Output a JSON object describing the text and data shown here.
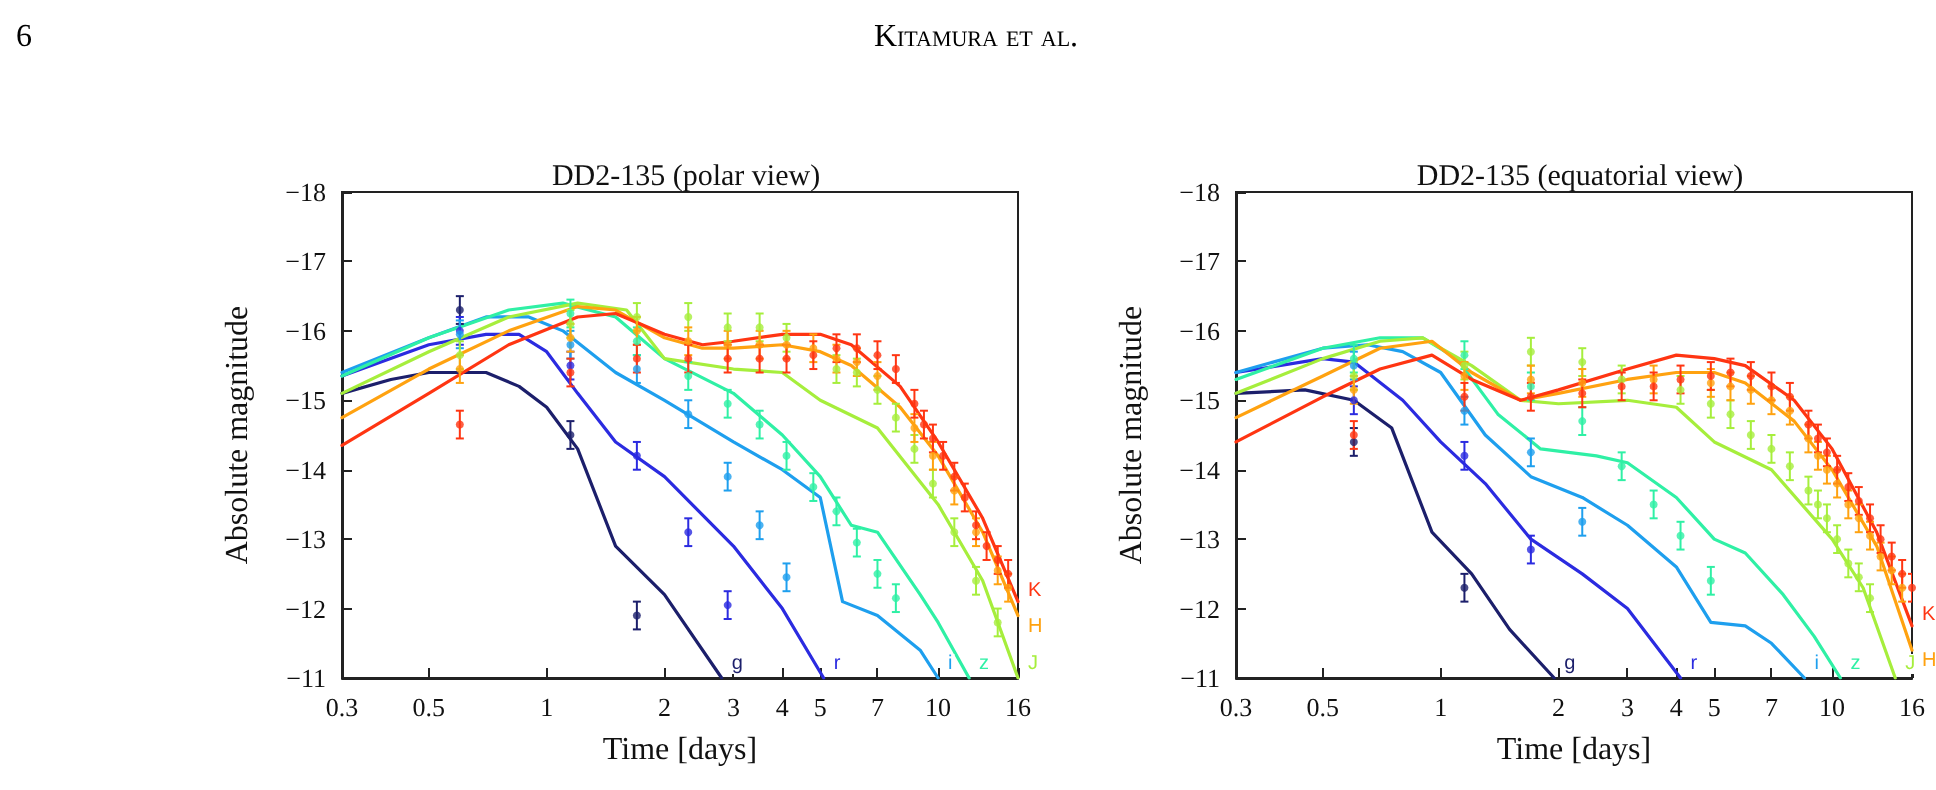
{
  "chart_data": [
    {
      "type": "line",
      "title": "DD2-135 (polar view)",
      "xlabel": "Time [days]",
      "ylabel": "Absolute magnitude",
      "annotations": [
        "6",
        "Kitamura et al."
      ],
      "log": "x",
      "grid": false,
      "legend": false,
      "marker": "none",
      "line_style": "solid",
      "xlim": [
        0.3,
        16
      ],
      "xticks": [
        0.3,
        0.5,
        1,
        2,
        3,
        4,
        5,
        7,
        10,
        16
      ],
      "ylim": [
        -11,
        -18
      ],
      "yticks": [
        {
          "value": -18,
          "label": "−18"
        },
        {
          "value": -17,
          "label": "−17"
        },
        {
          "value": -16,
          "label": "−16"
        },
        {
          "value": -15,
          "label": "−15"
        },
        {
          "value": -14,
          "label": "−14"
        },
        {
          "value": -13,
          "label": "−13"
        },
        {
          "value": -12,
          "label": "−12"
        },
        {
          "value": -11,
          "label": "−11"
        }
      ],
      "series": [
        {
          "name": "g",
          "color": "#1c1f6b",
          "x": [
            0.3,
            0.4,
            0.5,
            0.7,
            0.85,
            1.0,
            1.2,
            1.5,
            2.0,
            2.8
          ],
          "values": [
            -15.1,
            -15.3,
            -15.4,
            -15.4,
            -15.2,
            -14.9,
            -14.3,
            -12.9,
            -12.2,
            -11
          ]
        },
        {
          "name": "r",
          "color": "#2b2be0",
          "x": [
            0.3,
            0.5,
            0.7,
            0.85,
            1.0,
            1.2,
            1.5,
            2,
            3,
            4,
            5.1
          ],
          "values": [
            -15.35,
            -15.8,
            -15.95,
            -15.95,
            -15.7,
            -15.1,
            -14.4,
            -13.9,
            -12.9,
            -12.0,
            -11
          ]
        },
        {
          "name": "i",
          "color": "#1e9fee",
          "x": [
            0.3,
            0.5,
            0.7,
            0.9,
            1.1,
            1.5,
            2,
            3,
            4,
            5,
            5.7,
            7,
            9,
            10
          ],
          "values": [
            -15.4,
            -15.9,
            -16.2,
            -16.2,
            -16.0,
            -15.4,
            -15.0,
            -14.4,
            -14.0,
            -13.6,
            -12.1,
            -11.9,
            -11.4,
            -11
          ]
        },
        {
          "name": "z",
          "color": "#2ff0a5",
          "x": [
            0.3,
            0.5,
            0.8,
            1.1,
            1.5,
            2,
            3,
            4,
            5,
            6,
            7,
            9,
            10,
            12
          ],
          "values": [
            -15.35,
            -15.9,
            -16.3,
            -16.4,
            -16.2,
            -15.6,
            -15.1,
            -14.5,
            -13.9,
            -13.2,
            -13.1,
            -12.2,
            -11.8,
            -11
          ]
        },
        {
          "name": "J",
          "color": "#a6ee3c",
          "x": [
            0.3,
            0.5,
            0.8,
            1.2,
            1.6,
            2,
            3,
            4,
            5,
            7,
            10,
            13,
            16
          ],
          "values": [
            -15.1,
            -15.7,
            -16.2,
            -16.4,
            -16.3,
            -15.6,
            -15.45,
            -15.4,
            -15.0,
            -14.6,
            -13.5,
            -12.4,
            -11
          ]
        },
        {
          "name": "H",
          "color": "#ffa210",
          "x": [
            0.3,
            0.5,
            0.8,
            1.2,
            1.5,
            2,
            2.5,
            3,
            4,
            5,
            6,
            8,
            10,
            13,
            16
          ],
          "values": [
            -14.75,
            -15.45,
            -16.0,
            -16.35,
            -16.3,
            -15.9,
            -15.75,
            -15.75,
            -15.8,
            -15.7,
            -15.5,
            -14.9,
            -14.2,
            -13.1,
            -11.9
          ]
        },
        {
          "name": "K",
          "color": "#ff3512",
          "x": [
            0.3,
            0.5,
            0.8,
            1.2,
            1.5,
            2,
            2.5,
            3,
            4,
            5,
            6,
            8,
            10,
            13,
            16
          ],
          "values": [
            -14.35,
            -15.1,
            -15.8,
            -16.2,
            -16.25,
            -15.95,
            -15.8,
            -15.85,
            -15.95,
            -15.95,
            -15.8,
            -15.2,
            -14.4,
            -13.3,
            -12.1
          ]
        },
        {
          "type": "scatter",
          "marker": "circle",
          "color": "#1c1f6b",
          "x": [
            0.6,
            1.15,
            1.7
          ],
          "values": [
            -16.3,
            -14.5,
            -11.9
          ],
          "errors": [
            0.2,
            0.2,
            0.2
          ]
        },
        {
          "type": "scatter",
          "marker": "circle",
          "color": "#2b2be0",
          "x": [
            0.6,
            1.15,
            1.7,
            2.3,
            2.9
          ],
          "values": [
            -16.0,
            -15.5,
            -14.2,
            -13.1,
            -12.05
          ],
          "errors": [
            0.2,
            0.2,
            0.2,
            0.2,
            0.2
          ]
        },
        {
          "type": "scatter",
          "marker": "circle",
          "color": "#1e9fee",
          "x": [
            0.6,
            1.15,
            1.7,
            2.3,
            2.9,
            3.5,
            4.1
          ],
          "values": [
            -15.95,
            -15.8,
            -15.45,
            -14.8,
            -13.9,
            -13.2,
            -12.45
          ],
          "errors": [
            0.2,
            0.2,
            0.2,
            0.2,
            0.2,
            0.2,
            0.2
          ]
        },
        {
          "type": "scatter",
          "marker": "circle",
          "color": "#2ff0a5",
          "x": [
            1.15,
            1.7,
            2.3,
            2.9,
            3.5,
            4.1,
            4.8,
            5.5,
            6.2,
            7,
            7.8
          ],
          "values": [
            -16.25,
            -15.85,
            -15.35,
            -14.95,
            -14.65,
            -14.2,
            -13.75,
            -13.4,
            -12.95,
            -12.5,
            -12.15
          ],
          "errors": [
            0.2,
            0.2,
            0.2,
            0.2,
            0.2,
            0.2,
            0.2,
            0.2,
            0.2,
            0.2,
            0.2
          ]
        },
        {
          "type": "scatter",
          "marker": "circle",
          "color": "#a6ee3c",
          "x": [
            0.6,
            1.15,
            1.7,
            2.3,
            2.9,
            3.5,
            4.1,
            5.5,
            6.2,
            7,
            7.8,
            8.7,
            9.7,
            11,
            12.5,
            14.2
          ],
          "values": [
            -15.65,
            -16.1,
            -16.2,
            -16.2,
            -16.05,
            -16.05,
            -15.9,
            -15.45,
            -15.4,
            -15.15,
            -14.75,
            -14.3,
            -13.8,
            -13.1,
            -12.4,
            -11.8
          ],
          "errors": [
            0.2,
            0.2,
            0.2,
            0.2,
            0.2,
            0.2,
            0.2,
            0.2,
            0.2,
            0.2,
            0.2,
            0.2,
            0.2,
            0.2,
            0.2,
            0.2
          ]
        },
        {
          "type": "scatter",
          "marker": "circle",
          "color": "#ffa210",
          "x": [
            0.6,
            1.15,
            1.7,
            2.3,
            2.9,
            3.5,
            4.1,
            4.8,
            5.5,
            6.2,
            7,
            8.7,
            9.7,
            11,
            12.5,
            14.2,
            15.1
          ],
          "values": [
            -15.45,
            -15.9,
            -16.0,
            -15.85,
            -15.8,
            -15.8,
            -15.8,
            -15.75,
            -15.6,
            -15.55,
            -15.35,
            -14.6,
            -14.2,
            -13.7,
            -13.1,
            -12.55,
            -12.3
          ],
          "errors": [
            0.2,
            0.2,
            0.2,
            0.2,
            0.2,
            0.2,
            0.2,
            0.2,
            0.2,
            0.2,
            0.2,
            0.2,
            0.2,
            0.2,
            0.2,
            0.2,
            0.2
          ]
        },
        {
          "type": "scatter",
          "marker": "circle",
          "color": "#ff3512",
          "x": [
            0.6,
            1.15,
            1.7,
            2.3,
            2.9,
            3.5,
            4.1,
            4.8,
            5.5,
            6.2,
            7,
            7.8,
            8.7,
            9.2,
            9.7,
            10.3,
            11,
            11.7,
            12.5,
            13.3,
            14.2,
            15.1
          ],
          "values": [
            -14.65,
            -15.4,
            -15.6,
            -15.6,
            -15.6,
            -15.6,
            -15.6,
            -15.65,
            -15.75,
            -15.75,
            -15.65,
            -15.45,
            -14.95,
            -14.65,
            -14.45,
            -14.2,
            -13.9,
            -13.6,
            -13.2,
            -12.9,
            -12.7,
            -12.5
          ],
          "errors": [
            0.2,
            0.2,
            0.2,
            0.2,
            0.2,
            0.2,
            0.2,
            0.2,
            0.2,
            0.2,
            0.2,
            0.2,
            0.2,
            0.2,
            0.2,
            0.2,
            0.2,
            0.2,
            0.2,
            0.2,
            0.2,
            0.2
          ]
        }
      ]
    },
    {
      "type": "line",
      "title": "DD2-135 (equatorial view)",
      "xlabel": "Time [days]",
      "ylabel": "Absolute magnitude",
      "log": "x",
      "grid": false,
      "legend": false,
      "marker": "none",
      "line_style": "solid",
      "xlim": [
        0.3,
        16
      ],
      "xticks": [
        0.3,
        0.5,
        1,
        2,
        3,
        4,
        5,
        7,
        10,
        16
      ],
      "ylim": [
        -11,
        -18
      ],
      "yticks": [
        {
          "value": -18,
          "label": "−18"
        },
        {
          "value": -17,
          "label": "−17"
        },
        {
          "value": -16,
          "label": "−16"
        },
        {
          "value": -15,
          "label": "−15"
        },
        {
          "value": -14,
          "label": "−14"
        },
        {
          "value": -13,
          "label": "−13"
        },
        {
          "value": -12,
          "label": "−12"
        },
        {
          "value": -11,
          "label": "−11"
        }
      ],
      "series": [
        {
          "name": "g",
          "color": "#1c1f6b",
          "x": [
            0.3,
            0.45,
            0.6,
            0.75,
            0.95,
            1.2,
            1.5,
            1.95
          ],
          "values": [
            -15.1,
            -15.15,
            -15.0,
            -14.6,
            -13.1,
            -12.5,
            -11.7,
            -11
          ]
        },
        {
          "name": "r",
          "color": "#2b2be0",
          "x": [
            0.3,
            0.5,
            0.6,
            0.8,
            1.0,
            1.3,
            1.7,
            2.3,
            3,
            4.1
          ],
          "values": [
            -15.4,
            -15.6,
            -15.55,
            -15.0,
            -14.4,
            -13.8,
            -13.0,
            -12.5,
            -12.0,
            -11
          ]
        },
        {
          "name": "i",
          "color": "#1e9fee",
          "x": [
            0.3,
            0.5,
            0.65,
            0.8,
            1.0,
            1.3,
            1.7,
            2.3,
            3,
            4,
            4.9,
            6,
            7,
            8.5
          ],
          "values": [
            -15.4,
            -15.75,
            -15.8,
            -15.7,
            -15.4,
            -14.5,
            -13.9,
            -13.6,
            -13.2,
            -12.6,
            -11.8,
            -11.75,
            -11.5,
            -11
          ]
        },
        {
          "name": "z",
          "color": "#2ff0a5",
          "x": [
            0.3,
            0.5,
            0.7,
            0.9,
            1.1,
            1.4,
            1.8,
            2.5,
            3,
            4,
            5,
            6,
            7.5,
            9,
            10.5
          ],
          "values": [
            -15.3,
            -15.75,
            -15.9,
            -15.9,
            -15.6,
            -14.8,
            -14.3,
            -14.2,
            -14.1,
            -13.6,
            -13.0,
            -12.8,
            -12.2,
            -11.6,
            -11
          ]
        },
        {
          "name": "J",
          "color": "#a6ee3c",
          "x": [
            0.3,
            0.5,
            0.7,
            0.9,
            1.2,
            1.6,
            2,
            3,
            4,
            5,
            7,
            10,
            12,
            14.5
          ],
          "values": [
            -15.1,
            -15.6,
            -15.85,
            -15.9,
            -15.5,
            -15.0,
            -14.95,
            -15.0,
            -14.9,
            -14.4,
            -14.0,
            -13.0,
            -12.3,
            -11
          ]
        },
        {
          "name": "H",
          "color": "#ffa210",
          "x": [
            0.3,
            0.5,
            0.7,
            0.95,
            1.2,
            1.6,
            2,
            3,
            4,
            5,
            6,
            8,
            10,
            13,
            16
          ],
          "values": [
            -14.75,
            -15.35,
            -15.75,
            -15.85,
            -15.4,
            -15.0,
            -15.1,
            -15.3,
            -15.4,
            -15.4,
            -15.25,
            -14.7,
            -14.0,
            -12.9,
            -11.4
          ]
        },
        {
          "name": "K",
          "color": "#ff3512",
          "x": [
            0.3,
            0.5,
            0.7,
            0.95,
            1.2,
            1.6,
            2,
            3,
            4,
            5,
            6,
            8,
            10,
            13,
            16
          ],
          "values": [
            -14.4,
            -15.05,
            -15.45,
            -15.65,
            -15.3,
            -15.0,
            -15.15,
            -15.45,
            -15.65,
            -15.6,
            -15.5,
            -15.0,
            -14.3,
            -13.1,
            -11.75
          ]
        },
        {
          "type": "scatter",
          "marker": "circle",
          "color": "#1c1f6b",
          "x": [
            0.6,
            1.15
          ],
          "values": [
            -14.4,
            -12.3
          ],
          "errors": [
            0.2,
            0.2
          ]
        },
        {
          "type": "scatter",
          "marker": "circle",
          "color": "#2b2be0",
          "x": [
            0.6,
            1.15,
            1.7
          ],
          "values": [
            -15.0,
            -14.2,
            -12.85
          ],
          "errors": [
            0.2,
            0.2,
            0.2
          ]
        },
        {
          "type": "scatter",
          "marker": "circle",
          "color": "#1e9fee",
          "x": [
            0.6,
            1.15,
            1.7,
            2.3
          ],
          "values": [
            -15.5,
            -14.85,
            -14.25,
            -13.25
          ],
          "errors": [
            0.2,
            0.2,
            0.2,
            0.2
          ]
        },
        {
          "type": "scatter",
          "marker": "circle",
          "color": "#2ff0a5",
          "x": [
            0.6,
            1.15,
            1.7,
            2.3,
            2.9,
            3.5,
            4.1,
            4.9
          ],
          "values": [
            -15.6,
            -15.65,
            -15.2,
            -14.7,
            -14.05,
            -13.5,
            -13.05,
            -12.4
          ],
          "errors": [
            0.2,
            0.2,
            0.2,
            0.2,
            0.2,
            0.2,
            0.2,
            0.2
          ]
        },
        {
          "type": "scatter",
          "marker": "circle",
          "color": "#a6ee3c",
          "x": [
            0.6,
            1.15,
            1.7,
            2.3,
            2.9,
            4.1,
            4.9,
            5.5,
            6.2,
            7,
            7.8,
            8.7,
            9.2,
            9.7,
            10.3,
            11,
            11.7,
            12.5
          ],
          "values": [
            -15.35,
            -15.5,
            -15.7,
            -15.55,
            -15.3,
            -15.15,
            -14.95,
            -14.8,
            -14.5,
            -14.3,
            -14.05,
            -13.7,
            -13.5,
            -13.3,
            -13.0,
            -12.65,
            -12.45,
            -12.15
          ],
          "errors": [
            0.2,
            0.2,
            0.2,
            0.2,
            0.2,
            0.2,
            0.2,
            0.2,
            0.2,
            0.2,
            0.2,
            0.2,
            0.2,
            0.2,
            0.2,
            0.2,
            0.2,
            0.2
          ]
        },
        {
          "type": "scatter",
          "marker": "circle",
          "color": "#ffa210",
          "x": [
            0.6,
            1.15,
            1.7,
            2.3,
            2.9,
            3.5,
            4.1,
            4.9,
            5.5,
            6.2,
            7,
            7.8,
            8.7,
            9.2,
            9.7,
            10.3,
            11,
            11.7,
            12.5,
            13.3,
            14.2,
            15.1
          ],
          "values": [
            -15.15,
            -15.35,
            -15.3,
            -15.25,
            null,
            -15.3,
            null,
            -15.25,
            -15.2,
            -15.15,
            -15.0,
            -14.85,
            -14.45,
            -14.2,
            -14.0,
            -13.8,
            -13.5,
            -13.3,
            -13.05,
            -12.75,
            -12.55,
            -12.3
          ],
          "errors": [
            0.2,
            0.2,
            0.2,
            0.2,
            null,
            0.2,
            null,
            0.2,
            0.2,
            0.2,
            0.2,
            0.2,
            0.2,
            0.2,
            0.2,
            0.2,
            0.2,
            0.2,
            0.2,
            0.2,
            0.2,
            0.2
          ]
        },
        {
          "type": "scatter",
          "marker": "circle",
          "color": "#ff3512",
          "x": [
            0.6,
            1.15,
            1.7,
            2.3,
            2.9,
            3.5,
            4.1,
            4.9,
            5.5,
            6.2,
            7,
            7.8,
            8.7,
            9.2,
            9.7,
            10.3,
            11,
            11.7,
            12.5,
            13.3,
            14.2,
            15.1,
            16
          ],
          "values": [
            -14.5,
            -15.05,
            -15.05,
            -15.1,
            -15.2,
            -15.2,
            -15.3,
            -15.35,
            -15.4,
            -15.35,
            -15.2,
            -15.05,
            -14.65,
            -14.45,
            -14.25,
            -14.0,
            -13.75,
            -13.55,
            -13.3,
            -13.0,
            -12.75,
            -12.5,
            -12.3
          ],
          "errors": [
            0.2,
            0.2,
            0.2,
            0.2,
            0.2,
            0.2,
            0.2,
            0.2,
            0.2,
            0.2,
            0.2,
            0.2,
            0.2,
            0.2,
            0.2,
            0.2,
            0.2,
            0.2,
            0.2,
            0.2,
            0.2,
            0.2,
            0.2
          ]
        }
      ]
    }
  ]
}
